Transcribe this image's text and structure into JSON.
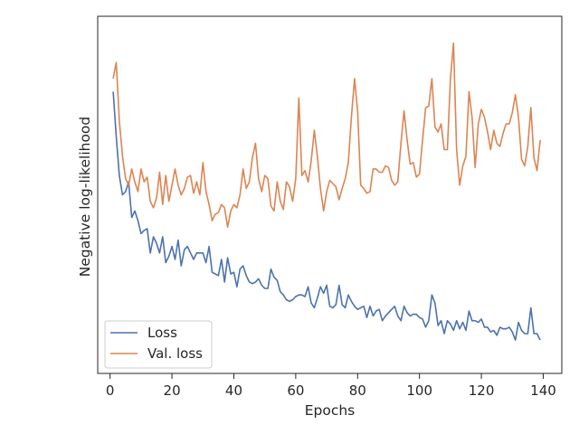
{
  "chart_data": {
    "type": "line",
    "title": "",
    "xlabel": "Epochs",
    "ylabel": "Negative log-likelihood",
    "xlim": [
      -4,
      146
    ],
    "xticks": [
      "0",
      "20",
      "40",
      "60",
      "80",
      "100",
      "120",
      "140"
    ],
    "ylim": [
      0,
      100
    ],
    "y_tick_labels_shown": false,
    "grid": false,
    "legend_position": "lower-left",
    "series": [
      {
        "name": "Loss",
        "color": "#4c72b0",
        "values": [
          [
            1,
            82
          ],
          [
            2,
            68
          ],
          [
            3,
            56
          ],
          [
            4,
            50
          ],
          [
            5,
            51
          ],
          [
            6,
            54
          ],
          [
            7,
            43
          ],
          [
            8,
            45
          ],
          [
            9,
            42
          ],
          [
            10,
            38
          ],
          [
            11,
            39
          ],
          [
            12,
            39.5
          ],
          [
            13,
            32
          ],
          [
            14,
            37
          ],
          [
            15,
            35
          ],
          [
            16,
            32
          ],
          [
            17,
            37
          ],
          [
            18,
            29
          ],
          [
            19,
            31
          ],
          [
            20,
            34
          ],
          [
            21,
            30
          ],
          [
            22,
            36
          ],
          [
            23,
            28
          ],
          [
            24,
            33
          ],
          [
            25,
            34
          ],
          [
            26,
            32
          ],
          [
            27,
            30
          ],
          [
            28,
            32
          ],
          [
            29,
            32
          ],
          [
            30,
            32
          ],
          [
            31,
            29
          ],
          [
            32,
            34
          ],
          [
            33,
            26
          ],
          [
            34,
            25.5
          ],
          [
            35,
            25
          ],
          [
            36,
            30
          ],
          [
            37,
            23
          ],
          [
            38,
            30.5
          ],
          [
            39,
            25.5
          ],
          [
            40,
            26
          ],
          [
            41,
            21.5
          ],
          [
            42,
            27
          ],
          [
            43,
            28
          ],
          [
            44,
            25
          ],
          [
            45,
            23
          ],
          [
            46,
            22.5
          ],
          [
            47,
            23
          ],
          [
            48,
            24
          ],
          [
            49,
            22
          ],
          [
            50,
            21
          ],
          [
            51,
            21
          ],
          [
            52,
            27
          ],
          [
            53,
            24.5
          ],
          [
            54,
            23.5
          ],
          [
            55,
            20
          ],
          [
            56,
            19
          ],
          [
            57,
            17.5
          ],
          [
            58,
            17
          ],
          [
            59,
            17.5
          ],
          [
            60,
            18.5
          ],
          [
            61,
            19
          ],
          [
            62,
            19
          ],
          [
            63,
            18.5
          ],
          [
            64,
            21.5
          ],
          [
            65,
            16.5
          ],
          [
            66,
            15
          ],
          [
            67,
            18
          ],
          [
            68,
            21.5
          ],
          [
            69,
            19.5
          ],
          [
            70,
            22
          ],
          [
            71,
            15.5
          ],
          [
            72,
            15
          ],
          [
            73,
            16
          ],
          [
            74,
            22
          ],
          [
            75,
            16
          ],
          [
            76,
            15
          ],
          [
            77,
            19
          ],
          [
            78,
            17
          ],
          [
            79,
            15.5
          ],
          [
            80,
            14.5
          ],
          [
            81,
            15
          ],
          [
            82,
            15.5
          ],
          [
            83,
            12
          ],
          [
            84,
            15.5
          ],
          [
            85,
            12.5
          ],
          [
            86,
            14
          ],
          [
            87,
            14.5
          ],
          [
            88,
            11
          ],
          [
            89,
            12.5
          ],
          [
            90,
            13.5
          ],
          [
            91,
            14.5
          ],
          [
            92,
            15.5
          ],
          [
            93,
            12.5
          ],
          [
            94,
            11
          ],
          [
            95,
            15.5
          ],
          [
            96,
            13.5
          ],
          [
            97,
            12.5
          ],
          [
            98,
            13
          ],
          [
            99,
            13
          ],
          [
            100,
            12
          ],
          [
            101,
            11.5
          ],
          [
            102,
            9
          ],
          [
            103,
            11
          ],
          [
            104,
            19
          ],
          [
            105,
            16.5
          ],
          [
            106,
            9.5
          ],
          [
            107,
            11
          ],
          [
            108,
            7
          ],
          [
            109,
            11
          ],
          [
            110,
            10
          ],
          [
            111,
            8
          ],
          [
            112,
            11
          ],
          [
            113,
            8.5
          ],
          [
            114,
            10.5
          ],
          [
            115,
            8
          ],
          [
            116,
            14
          ],
          [
            117,
            11
          ],
          [
            118,
            11
          ],
          [
            119,
            10.5
          ],
          [
            120,
            11.5
          ],
          [
            121,
            9
          ],
          [
            122,
            9
          ],
          [
            123,
            7.5
          ],
          [
            124,
            8
          ],
          [
            125,
            6.5
          ],
          [
            126,
            9
          ],
          [
            127,
            8.5
          ],
          [
            128,
            8.5
          ],
          [
            129,
            9
          ],
          [
            130,
            7.5
          ],
          [
            131,
            5
          ],
          [
            132,
            10.5
          ],
          [
            133,
            8
          ],
          [
            134,
            7
          ],
          [
            135,
            7
          ],
          [
            136,
            15
          ],
          [
            137,
            7
          ],
          [
            138,
            7
          ],
          [
            139,
            5
          ]
        ]
      },
      {
        "name": "Val. loss",
        "color": "#dd8452",
        "values": [
          [
            1,
            86
          ],
          [
            2,
            91
          ],
          [
            3,
            73
          ],
          [
            4,
            62
          ],
          [
            5,
            55
          ],
          [
            6,
            53
          ],
          [
            7,
            58
          ],
          [
            8,
            54
          ],
          [
            9,
            51
          ],
          [
            10,
            58
          ],
          [
            11,
            54
          ],
          [
            12,
            55.5
          ],
          [
            13,
            48
          ],
          [
            14,
            46
          ],
          [
            15,
            49
          ],
          [
            16,
            57
          ],
          [
            17,
            47
          ],
          [
            18,
            56
          ],
          [
            19,
            48
          ],
          [
            20,
            53
          ],
          [
            21,
            58
          ],
          [
            22,
            53
          ],
          [
            23,
            50
          ],
          [
            24,
            52
          ],
          [
            25,
            55.5
          ],
          [
            26,
            56
          ],
          [
            27,
            50.5
          ],
          [
            28,
            54
          ],
          [
            29,
            50
          ],
          [
            30,
            60
          ],
          [
            31,
            51
          ],
          [
            32,
            47
          ],
          [
            33,
            42
          ],
          [
            34,
            44
          ],
          [
            35,
            44.5
          ],
          [
            36,
            47
          ],
          [
            37,
            46
          ],
          [
            38,
            40
          ],
          [
            39,
            45
          ],
          [
            40,
            47
          ],
          [
            41,
            46
          ],
          [
            42,
            50
          ],
          [
            43,
            58
          ],
          [
            44,
            52
          ],
          [
            45,
            54
          ],
          [
            46,
            61.5
          ],
          [
            47,
            66
          ],
          [
            48,
            55
          ],
          [
            49,
            51
          ],
          [
            50,
            56
          ],
          [
            51,
            55
          ],
          [
            52,
            46.5
          ],
          [
            53,
            45
          ],
          [
            54,
            54
          ],
          [
            55,
            48
          ],
          [
            56,
            45.5
          ],
          [
            57,
            54
          ],
          [
            58,
            52.5
          ],
          [
            59,
            48
          ],
          [
            60,
            55
          ],
          [
            61,
            80
          ],
          [
            62,
            56
          ],
          [
            63,
            57.5
          ],
          [
            64,
            54
          ],
          [
            65,
            60.5
          ],
          [
            66,
            70
          ],
          [
            67,
            62
          ],
          [
            68,
            52
          ],
          [
            69,
            45
          ],
          [
            70,
            51
          ],
          [
            71,
            54.5
          ],
          [
            72,
            53.5
          ],
          [
            73,
            52.5
          ],
          [
            74,
            48.5
          ],
          [
            75,
            52
          ],
          [
            76,
            55
          ],
          [
            77,
            60
          ],
          [
            78,
            74
          ],
          [
            79,
            86
          ],
          [
            80,
            76
          ],
          [
            81,
            53
          ],
          [
            82,
            52
          ],
          [
            83,
            50.5
          ],
          [
            84,
            51
          ],
          [
            85,
            58
          ],
          [
            86,
            58
          ],
          [
            87,
            57
          ],
          [
            88,
            57
          ],
          [
            89,
            59
          ],
          [
            90,
            58.5
          ],
          [
            91,
            54.5
          ],
          [
            92,
            53
          ],
          [
            93,
            54
          ],
          [
            94,
            66
          ],
          [
            95,
            76
          ],
          [
            96,
            67
          ],
          [
            97,
            59.5
          ],
          [
            98,
            60
          ],
          [
            99,
            55.5
          ],
          [
            100,
            56.5
          ],
          [
            101,
            67
          ],
          [
            102,
            77
          ],
          [
            103,
            77.5
          ],
          [
            104,
            86
          ],
          [
            105,
            71
          ],
          [
            106,
            69.5
          ],
          [
            107,
            72
          ],
          [
            108,
            64
          ],
          [
            109,
            64
          ],
          [
            110,
            86
          ],
          [
            111,
            97
          ],
          [
            112,
            64
          ],
          [
            113,
            53
          ],
          [
            114,
            59
          ],
          [
            115,
            62
          ],
          [
            116,
            82
          ],
          [
            117,
            74
          ],
          [
            118,
            58.5
          ],
          [
            119,
            72
          ],
          [
            120,
            76.5
          ],
          [
            121,
            74
          ],
          [
            122,
            69.5
          ],
          [
            123,
            64
          ],
          [
            124,
            70
          ],
          [
            125,
            66
          ],
          [
            126,
            65
          ],
          [
            127,
            69
          ],
          [
            128,
            72
          ],
          [
            129,
            72
          ],
          [
            130,
            75.5
          ],
          [
            131,
            81
          ],
          [
            132,
            74
          ],
          [
            133,
            61
          ],
          [
            134,
            59
          ],
          [
            135,
            65
          ],
          [
            136,
            77
          ],
          [
            137,
            61.5
          ],
          [
            138,
            57.5
          ],
          [
            139,
            67
          ]
        ]
      }
    ]
  }
}
